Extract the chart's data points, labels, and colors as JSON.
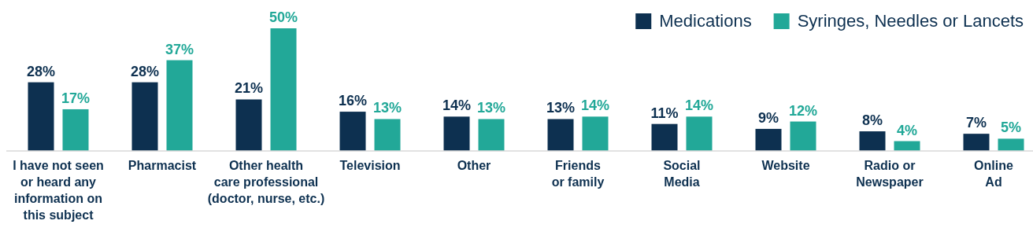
{
  "chart_data": {
    "type": "bar",
    "categories": [
      "I have not seen\nor heard any\ninformation on\nthis subject",
      "Pharmacist",
      "Other health\ncare professional\n(doctor, nurse, etc.)",
      "Television",
      "Other",
      "Friends\nor family",
      "Social\nMedia",
      "Website",
      "Radio or\nNewspaper",
      "Online\nAd"
    ],
    "series": [
      {
        "name": "Medications",
        "color": "#0d3050",
        "values": [
          28,
          28,
          21,
          16,
          14,
          13,
          11,
          9,
          8,
          7
        ],
        "value_labels": [
          "28%",
          "28%",
          "21%",
          "16%",
          "14%",
          "13%",
          "11%",
          "9%",
          "8%",
          "7%"
        ]
      },
      {
        "name": "Syringes, Needles or Lancets",
        "color": "#22a898",
        "values": [
          17,
          37,
          50,
          13,
          13,
          14,
          14,
          12,
          4,
          5
        ],
        "value_labels": [
          "17%",
          "37%",
          "50%",
          "13%",
          "13%",
          "14%",
          "14%",
          "12%",
          "4%",
          "5%"
        ]
      }
    ],
    "legend": "top right"
  }
}
